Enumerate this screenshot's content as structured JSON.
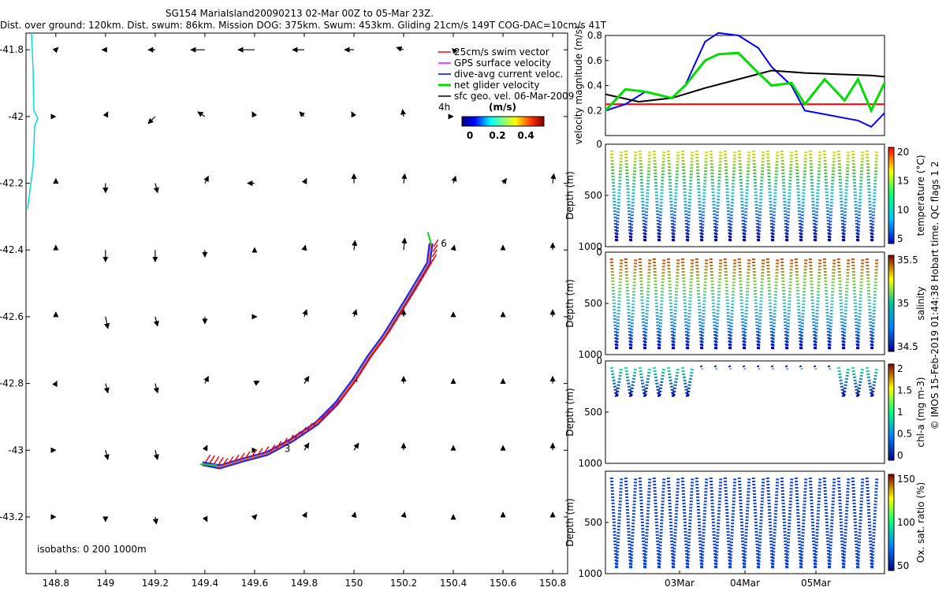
{
  "header": {
    "title_line1": "SG154 MariaIsland20090213 02-Mar 00Z to 05-Mar 23Z.",
    "title_line2": "Dist. over ground: 120km. Dist. swum: 86km. Mission DOG: 375km. Swum: 453km. Gliding 21cm/s 149T COG-DAC=10cm/s 41T"
  },
  "map": {
    "xticks": [
      "148.8",
      "149",
      "149.2",
      "149.4",
      "149.6",
      "149.8",
      "150",
      "150.2",
      "150.4",
      "150.6",
      "150.8"
    ],
    "yticks": [
      "-41.8",
      "-42",
      "-42.2",
      "-42.4",
      "-42.6",
      "-42.8",
      "-43",
      "-43.2"
    ],
    "isobaths_label": "isobaths: 0   200  1000m",
    "legend": [
      {
        "label": "25cm/s swim vector",
        "color": "#ff0000"
      },
      {
        "label": "GPS surface velocity",
        "color": "#ff00ff"
      },
      {
        "label": "dive-avg current veloc.",
        "color": "#0000ff"
      },
      {
        "label": "net glider velocity",
        "color": "#00dd00"
      },
      {
        "label": "sfc geo. vel. 06-Mar-2009",
        "color": "#000000"
      }
    ],
    "colorbar_units": "(m/s)",
    "colorbar_ticks": [
      "0",
      "0.2",
      "0.4"
    ],
    "interval_label": "4h",
    "track_labels": [
      "6",
      "3"
    ],
    "coastline_color": "#00dddd"
  },
  "panels": {
    "velocity": {
      "ylabel": "velocity magnitude (m/s)",
      "yticks": [
        "0.8",
        "0.6",
        "0.4",
        "0.2"
      ]
    },
    "temperature": {
      "ylabel": "Depth (m)",
      "yticks": [
        "0",
        "500",
        "1000"
      ],
      "cbar_label": "temperature (°C)",
      "cbar_ticks": [
        "20",
        "15",
        "10",
        "5"
      ]
    },
    "salinity": {
      "ylabel": "Depth (m)",
      "yticks": [
        "0",
        "500",
        "1000"
      ],
      "cbar_label": "salinity",
      "cbar_ticks": [
        "35.5",
        "35",
        "34.5"
      ]
    },
    "chla": {
      "ylabel": "Depth (m)",
      "yticks": [
        "0",
        "500",
        "1000"
      ],
      "cbar_label": "chl-a (mg m-3)",
      "cbar_ticks": [
        "2",
        "1.5",
        "1",
        "0.5",
        "0"
      ]
    },
    "oxygen": {
      "ylabel": "Depth (m)",
      "yticks": [
        "500",
        "1000"
      ],
      "cbar_label": "Ox. sat. ratio (%)",
      "cbar_ticks": [
        "150",
        "100",
        "50"
      ]
    },
    "xticks": [
      "03Mar",
      "04Mar",
      "05Mar"
    ],
    "side_note": "© IMOS 15-Feb-2019 01:44:38 Hobart time. QC flags 1  2"
  },
  "chart_data": [
    {
      "type": "scatter",
      "title": "SG154 MariaIsland20090213 02-Mar 00Z to 05-Mar 23Z.",
      "xlim": [
        148.68,
        150.86
      ],
      "ylim": [
        -43.37,
        -41.75
      ],
      "x_tick_values": [
        148.8,
        149,
        149.2,
        149.4,
        149.6,
        149.8,
        150,
        150.2,
        150.4,
        150.6,
        150.8
      ],
      "y_tick_values": [
        -41.8,
        -42,
        -42.2,
        -42.4,
        -42.6,
        -42.8,
        -43,
        -43.2
      ],
      "glider_track": {
        "lon": [
          149.39,
          149.46,
          149.55,
          149.65,
          149.75,
          149.85,
          149.93,
          150.0,
          150.06,
          150.12,
          150.17,
          150.22,
          150.26,
          150.3,
          150.31
        ],
        "lat": [
          -43.04,
          -43.05,
          -43.03,
          -43.01,
          -42.97,
          -42.92,
          -42.86,
          -42.79,
          -42.72,
          -42.66,
          -42.6,
          -42.54,
          -42.49,
          -42.44,
          -42.38
        ]
      },
      "surface_velocity_arrows": {
        "lon": [
          148.8,
          149.0,
          149.2,
          149.4,
          149.6,
          149.8,
          150.0,
          150.2,
          150.4,
          148.8,
          149.0,
          149.2,
          149.4,
          149.6,
          149.8,
          150.0,
          150.2,
          150.4,
          148.8,
          149.0,
          149.2,
          149.4,
          149.6,
          149.8,
          150.0,
          150.2,
          150.4,
          150.6,
          150.8,
          148.8,
          149.0,
          149.2,
          149.4,
          149.6,
          149.8,
          150.0,
          150.2,
          150.4,
          150.6,
          150.8,
          148.8,
          149.0,
          149.2,
          149.4,
          149.6,
          149.8,
          150.0,
          150.2,
          150.4,
          150.6,
          150.8,
          148.8,
          149.0,
          149.2,
          149.4,
          149.6,
          149.8,
          150.0,
          150.2,
          150.4,
          150.6,
          150.8,
          148.8,
          149.0,
          149.2,
          149.4,
          149.6,
          149.8,
          150.0,
          150.2,
          150.4,
          150.6,
          150.8,
          148.8,
          149.0,
          149.2,
          149.4,
          149.6,
          149.8,
          150.0,
          150.2,
          150.4,
          150.6,
          150.8
        ],
        "lat": [
          -41.8,
          -41.8,
          -41.8,
          -41.8,
          -41.8,
          -41.8,
          -41.8,
          -41.8,
          -41.8,
          -42,
          -42,
          -42,
          -42,
          -42,
          -42,
          -42,
          -42,
          -42,
          -42.2,
          -42.2,
          -42.2,
          -42.2,
          -42.2,
          -42.2,
          -42.2,
          -42.2,
          -42.2,
          -42.2,
          -42.2,
          -42.4,
          -42.4,
          -42.4,
          -42.4,
          -42.4,
          -42.4,
          -42.4,
          -42.4,
          -42.4,
          -42.4,
          -42.4,
          -42.6,
          -42.6,
          -42.6,
          -42.6,
          -42.6,
          -42.6,
          -42.6,
          -42.6,
          -42.6,
          -42.6,
          -42.6,
          -42.8,
          -42.8,
          -42.8,
          -42.8,
          -42.8,
          -42.8,
          -42.8,
          -42.8,
          -42.8,
          -42.8,
          -42.8,
          -43,
          -43,
          -43,
          -43,
          -43,
          -43,
          -43,
          -43,
          -43,
          -43,
          -43,
          -43.2,
          -43.2,
          -43.2,
          -43.2,
          -43.2,
          -43.2,
          -43.2,
          -43.2,
          -43.2,
          -43.2,
          -43.2
        ],
        "u": [
          0.1,
          -0.15,
          -0.3,
          -0.6,
          -0.7,
          -0.5,
          -0.4,
          -0.3,
          -0.05,
          0.0,
          0.1,
          -0.3,
          -0.3,
          -0.1,
          -0.2,
          -0.1,
          -0.05,
          0.0,
          0.0,
          0.0,
          0.1,
          0.15,
          -0.3,
          0.1,
          0.0,
          0.05,
          0.1,
          0.15,
          0.05,
          0.0,
          0.0,
          0.0,
          0.0,
          0.0,
          0.05,
          0.05,
          0.05,
          0.05,
          0.0,
          0.0,
          0.0,
          0.1,
          0.1,
          0.0,
          0.1,
          0.1,
          0.1,
          0.0,
          0.0,
          0.0,
          0.0,
          0.05,
          0.1,
          0.1,
          0.15,
          0.2,
          0.2,
          0.1,
          0.0,
          0.0,
          0.0,
          0.0,
          0.0,
          0.1,
          0.1,
          0.1,
          0.1,
          0.2,
          0.2,
          0.0,
          0.0,
          0.0,
          0.0,
          0.0,
          0.0,
          0.05,
          0.1,
          0.1,
          0.1,
          0.05,
          0.05,
          0.0,
          0.0,
          0.0
        ],
        "v": [
          0.1,
          0.0,
          0.0,
          0.0,
          0.0,
          0.0,
          0.0,
          0.1,
          0.05,
          0.0,
          0.2,
          -0.3,
          0.2,
          0.2,
          0.2,
          0.2,
          0.3,
          0.0,
          0.2,
          -0.4,
          -0.4,
          0.3,
          0.0,
          0.2,
          0.4,
          0.4,
          0.3,
          0.2,
          0.4,
          0.2,
          -0.5,
          -0.5,
          -0.3,
          0.1,
          0.2,
          0.4,
          0.5,
          0.2,
          0.2,
          0.3,
          0.2,
          -0.5,
          -0.4,
          -0.3,
          0.0,
          0.3,
          0.3,
          0.3,
          0.2,
          0.2,
          0.3,
          0.1,
          -0.4,
          -0.4,
          0.3,
          0.1,
          0.3,
          0.3,
          0.3,
          0.2,
          0.2,
          0.3,
          0.0,
          -0.4,
          -0.4,
          0.2,
          0.0,
          0.3,
          0.3,
          0.3,
          0.2,
          0.2,
          0.3,
          0.0,
          -0.2,
          -0.3,
          -0.2,
          0.1,
          0.2,
          0.2,
          0.2,
          0.1,
          0.2,
          0.2
        ]
      }
    },
    {
      "type": "line",
      "ylabel": "velocity magnitude (m/s)",
      "ylim": [
        0,
        0.8
      ],
      "xlim": [
        0,
        4.2
      ],
      "x_tick_positions": [
        1,
        2,
        3
      ],
      "series": [
        {
          "name": "25cm/s swim vector",
          "color": "#ff0000",
          "x": [
            0,
            4.2
          ],
          "y": [
            0.25,
            0.25
          ]
        },
        {
          "name": "dive-avg current veloc.",
          "color": "#0000ff",
          "x": [
            0,
            0.3,
            0.6,
            1.0,
            1.2,
            1.5,
            1.7,
            2.0,
            2.3,
            2.5,
            2.8,
            3.0,
            3.3,
            3.6,
            3.8,
            4.0,
            4.2
          ],
          "y": [
            0.2,
            0.25,
            0.35,
            0.3,
            0.4,
            0.75,
            0.82,
            0.8,
            0.7,
            0.55,
            0.4,
            0.2,
            0.17,
            0.14,
            0.12,
            0.07,
            0.18
          ]
        },
        {
          "name": "sfc geo. vel. 06-Mar-2009",
          "color": "#000000",
          "x": [
            0,
            0.5,
            1.0,
            1.5,
            2.0,
            2.5,
            3.0,
            3.5,
            4.0,
            4.2
          ],
          "y": [
            0.33,
            0.27,
            0.3,
            0.38,
            0.45,
            0.52,
            0.5,
            0.49,
            0.48,
            0.47
          ]
        },
        {
          "name": "net glider velocity",
          "color": "#00dd00",
          "x": [
            0,
            0.3,
            0.6,
            1.0,
            1.2,
            1.5,
            1.7,
            2.0,
            2.3,
            2.5,
            2.8,
            3.0,
            3.3,
            3.6,
            3.8,
            4.0,
            4.2
          ],
          "y": [
            0.2,
            0.37,
            0.35,
            0.3,
            0.4,
            0.6,
            0.65,
            0.66,
            0.5,
            0.4,
            0.42,
            0.25,
            0.45,
            0.28,
            0.45,
            0.2,
            0.42
          ]
        }
      ]
    }
  ]
}
